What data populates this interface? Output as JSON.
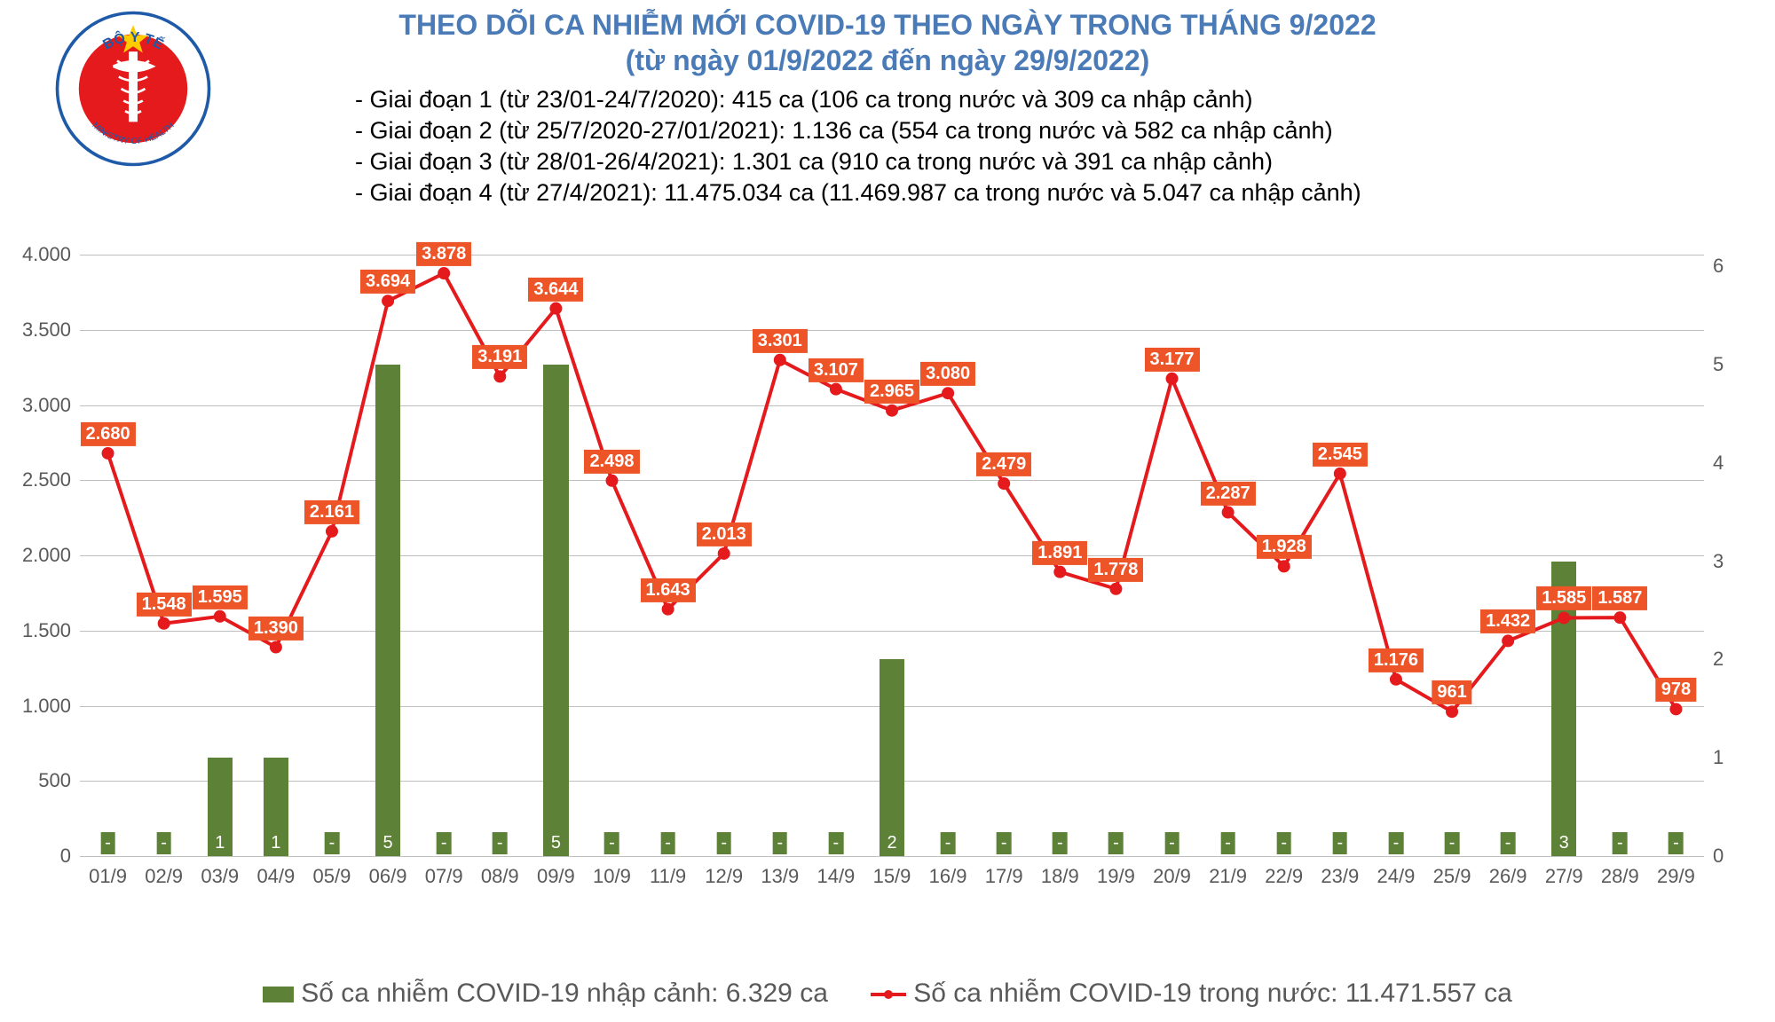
{
  "title": "THEO DÕI CA NHIỄM MỚI COVID-19 THEO NGÀY TRONG THÁNG 9/2022",
  "subtitle": "(từ ngày 01/9/2022 đến ngày 29/9/2022)",
  "notes": [
    "- Giai đoạn 1 (từ 23/01-24/7/2020): 415 ca (106 ca trong nước và 309 ca nhập cảnh)",
    "- Giai đoạn 2 (từ 25/7/2020-27/01/2021): 1.136 ca (554 ca trong nước và 582 ca nhập cảnh)",
    "- Giai đoạn 3 (từ 28/01-26/4/2021): 1.301 ca (910 ca trong nước và 391 ca nhập cảnh)",
    "- Giai đoạn 4 (từ 27/4/2021): 11.475.034 ca (11.469.987 ca trong nước và 5.047 ca nhập cảnh)"
  ],
  "logo": {
    "outer_color": "#1e5aa8",
    "inner_color": "#e41a1c",
    "star_color": "#ffcc00",
    "text_top": "BỘ Y TẾ",
    "text_bottom": "MINISTRY OF HEALTH"
  },
  "chart": {
    "type": "combo-bar-line",
    "categories": [
      "01/9",
      "02/9",
      "03/9",
      "04/9",
      "05/9",
      "06/9",
      "07/9",
      "08/9",
      "09/9",
      "10/9",
      "11/9",
      "12/9",
      "13/9",
      "14/9",
      "15/9",
      "16/9",
      "17/9",
      "18/9",
      "19/9",
      "20/9",
      "21/9",
      "22/9",
      "23/9",
      "24/9",
      "25/9",
      "26/9",
      "27/9",
      "28/9",
      "29/9"
    ],
    "bars": {
      "values": [
        0,
        0,
        1,
        1,
        0,
        5,
        0,
        0,
        5,
        0,
        0,
        0,
        0,
        0,
        2,
        0,
        0,
        0,
        0,
        0,
        0,
        0,
        0,
        0,
        0,
        0,
        3,
        0,
        0
      ],
      "labels": [
        "-",
        "-",
        "1",
        "1",
        "-",
        "5",
        "-",
        "-",
        "5",
        "-",
        "-",
        "-",
        "-",
        "-",
        "2",
        "-",
        "-",
        "-",
        "-",
        "-",
        "-",
        "-",
        "-",
        "-",
        "-",
        "-",
        "3",
        "-",
        "-"
      ],
      "color": "#5d8136",
      "axis": "right",
      "bar_width": 0.45
    },
    "line": {
      "values": [
        2680,
        1548,
        1595,
        1390,
        2161,
        3694,
        3878,
        3191,
        3644,
        2498,
        1643,
        2013,
        3301,
        3107,
        2965,
        3080,
        2479,
        1891,
        1778,
        3177,
        2287,
        1928,
        2545,
        1176,
        961,
        1432,
        1585,
        1587,
        978
      ],
      "labels": [
        "2.680",
        "1.548",
        "1.595",
        "1.390",
        "2.161",
        "3.694",
        "3.878",
        "3.191",
        "3.644",
        "2.498",
        "1.643",
        "2.013",
        "3.301",
        "3.107",
        "2.965",
        "3.080",
        "2.479",
        "1.891",
        "1.778",
        "3.177",
        "2.287",
        "1.928",
        "2.545",
        "1.176",
        "961",
        "1.432",
        "1.585",
        "1.587",
        "978"
      ],
      "color": "#e41a1c",
      "marker_color": "#e41a1c",
      "label_bg": "#ed5428",
      "line_width": 4,
      "marker_size": 7,
      "axis": "left"
    },
    "y_left": {
      "min": 0,
      "max": 4250,
      "ticks": [
        0,
        500,
        1000,
        1500,
        2000,
        2500,
        3000,
        3500,
        4000
      ],
      "tick_labels": [
        "0",
        "500",
        "1.000",
        "1.500",
        "2.000",
        "2.500",
        "3.000",
        "3.500",
        "4.000"
      ]
    },
    "y_right": {
      "min": 0,
      "max": 6.5,
      "ticks": [
        0,
        1,
        2,
        3,
        4,
        5,
        6
      ],
      "tick_labels": [
        "0",
        "1",
        "2",
        "3",
        "4",
        "5",
        "6"
      ]
    },
    "grid_color": "#bfbfbf",
    "background_color": "#ffffff",
    "label_fontsize": 22
  },
  "legend": {
    "bar_text": "Số ca nhiễm COVID-19 nhập cảnh: 6.329 ca",
    "line_text": "Số ca nhiễm COVID-19 trong nước: 11.471.557 ca"
  }
}
